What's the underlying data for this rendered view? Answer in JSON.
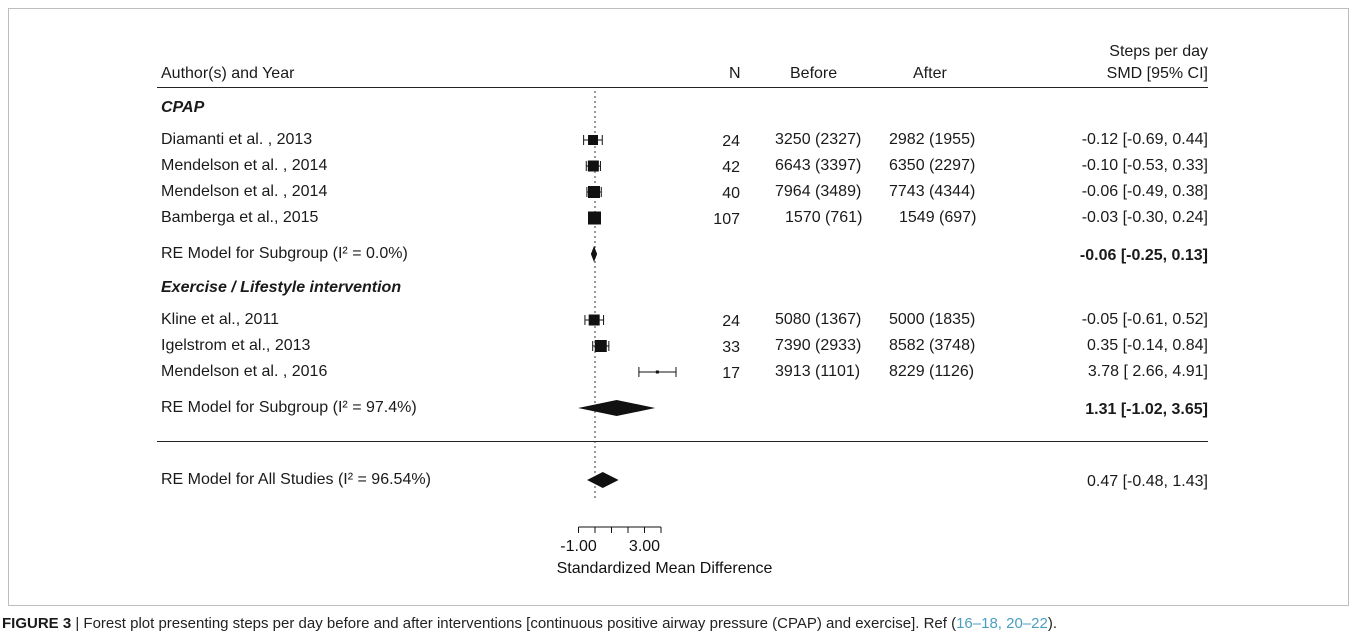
{
  "chart_data": {
    "type": "forest",
    "xlabel": "Standardized Mean Difference",
    "xticks": [
      "-1.00",
      "3.00"
    ],
    "xlim": [
      -1,
      4
    ],
    "reference_line": 0,
    "headers": {
      "study": "Author(s) and Year",
      "n": "N",
      "before": "Before",
      "after": "After",
      "measure_top": "Steps per day",
      "measure": "SMD [95% CI]"
    },
    "groups": [
      {
        "name": "CPAP",
        "studies": [
          {
            "label": "Diamanti et al. , 2013",
            "n": "24",
            "before": "3250 (2327)",
            "after": "2982 (1955)",
            "ci_text": "-0.12 [-0.69, 0.44]",
            "est": -0.12,
            "lo": -0.69,
            "hi": 0.44
          },
          {
            "label": "Mendelson et al. , 2014",
            "n": "42",
            "before": "6643 (3397)",
            "after": "6350 (2297)",
            "ci_text": "-0.10 [-0.53, 0.33]",
            "est": -0.1,
            "lo": -0.53,
            "hi": 0.33
          },
          {
            "label": "Mendelson et al. , 2014",
            "n": "40",
            "before": "7964 (3489)",
            "after": "7743 (4344)",
            "ci_text": "-0.06 [-0.49, 0.38]",
            "est": -0.06,
            "lo": -0.49,
            "hi": 0.38
          },
          {
            "label": "Bamberga et al., 2015",
            "n": "107",
            "before": "1570 (761)",
            "after": "1549 (697)",
            "ci_text": "-0.03 [-0.30, 0.24]",
            "est": -0.03,
            "lo": -0.3,
            "hi": 0.24
          }
        ],
        "summary": {
          "label": "RE Model for Subgroup  (I² = 0.0%)",
          "ci_text": "-0.06 [-0.25, 0.13]",
          "est": -0.06,
          "lo": -0.25,
          "hi": 0.13
        }
      },
      {
        "name": "Exercise / Lifestyle intervention",
        "studies": [
          {
            "label": "Kline et al., 2011",
            "n": "24",
            "before": "5080 (1367)",
            "after": "5000 (1835)",
            "ci_text": "-0.05 [-0.61, 0.52]",
            "est": -0.05,
            "lo": -0.61,
            "hi": 0.52
          },
          {
            "label": "Igelstrom et al., 2013",
            "n": "33",
            "before": "7390 (2933)",
            "after": "8582 (3748)",
            "ci_text": "0.35 [-0.14, 0.84]",
            "est": 0.35,
            "lo": -0.14,
            "hi": 0.84
          },
          {
            "label": "Mendelson et al. , 2016",
            "n": "17",
            "before": "3913 (1101)",
            "after": "8229 (1126)",
            "ci_text": "3.78 [ 2.66, 4.91]",
            "est": 3.78,
            "lo": 2.66,
            "hi": 4.91
          }
        ],
        "summary": {
          "label": "RE Model for Subgroup  (I² = 97.4%)",
          "ci_text": "1.31 [-1.02, 3.65]",
          "est": 1.31,
          "lo": -1.02,
          "hi": 3.65
        }
      }
    ],
    "overall": {
      "label": "RE Model for All Studies (I² = 96.54%)",
      "ci_text": "0.47 [-0.48, 1.43]",
      "est": 0.47,
      "lo": -0.48,
      "hi": 1.43
    }
  },
  "caption": {
    "figure_label": "FIGURE 3",
    "text": " | Forest plot presenting steps per day before and after interventions [continuous positive airway pressure (CPAP) and exercise]. Ref (",
    "refs": "16–18, 20–22",
    "end": ")."
  }
}
